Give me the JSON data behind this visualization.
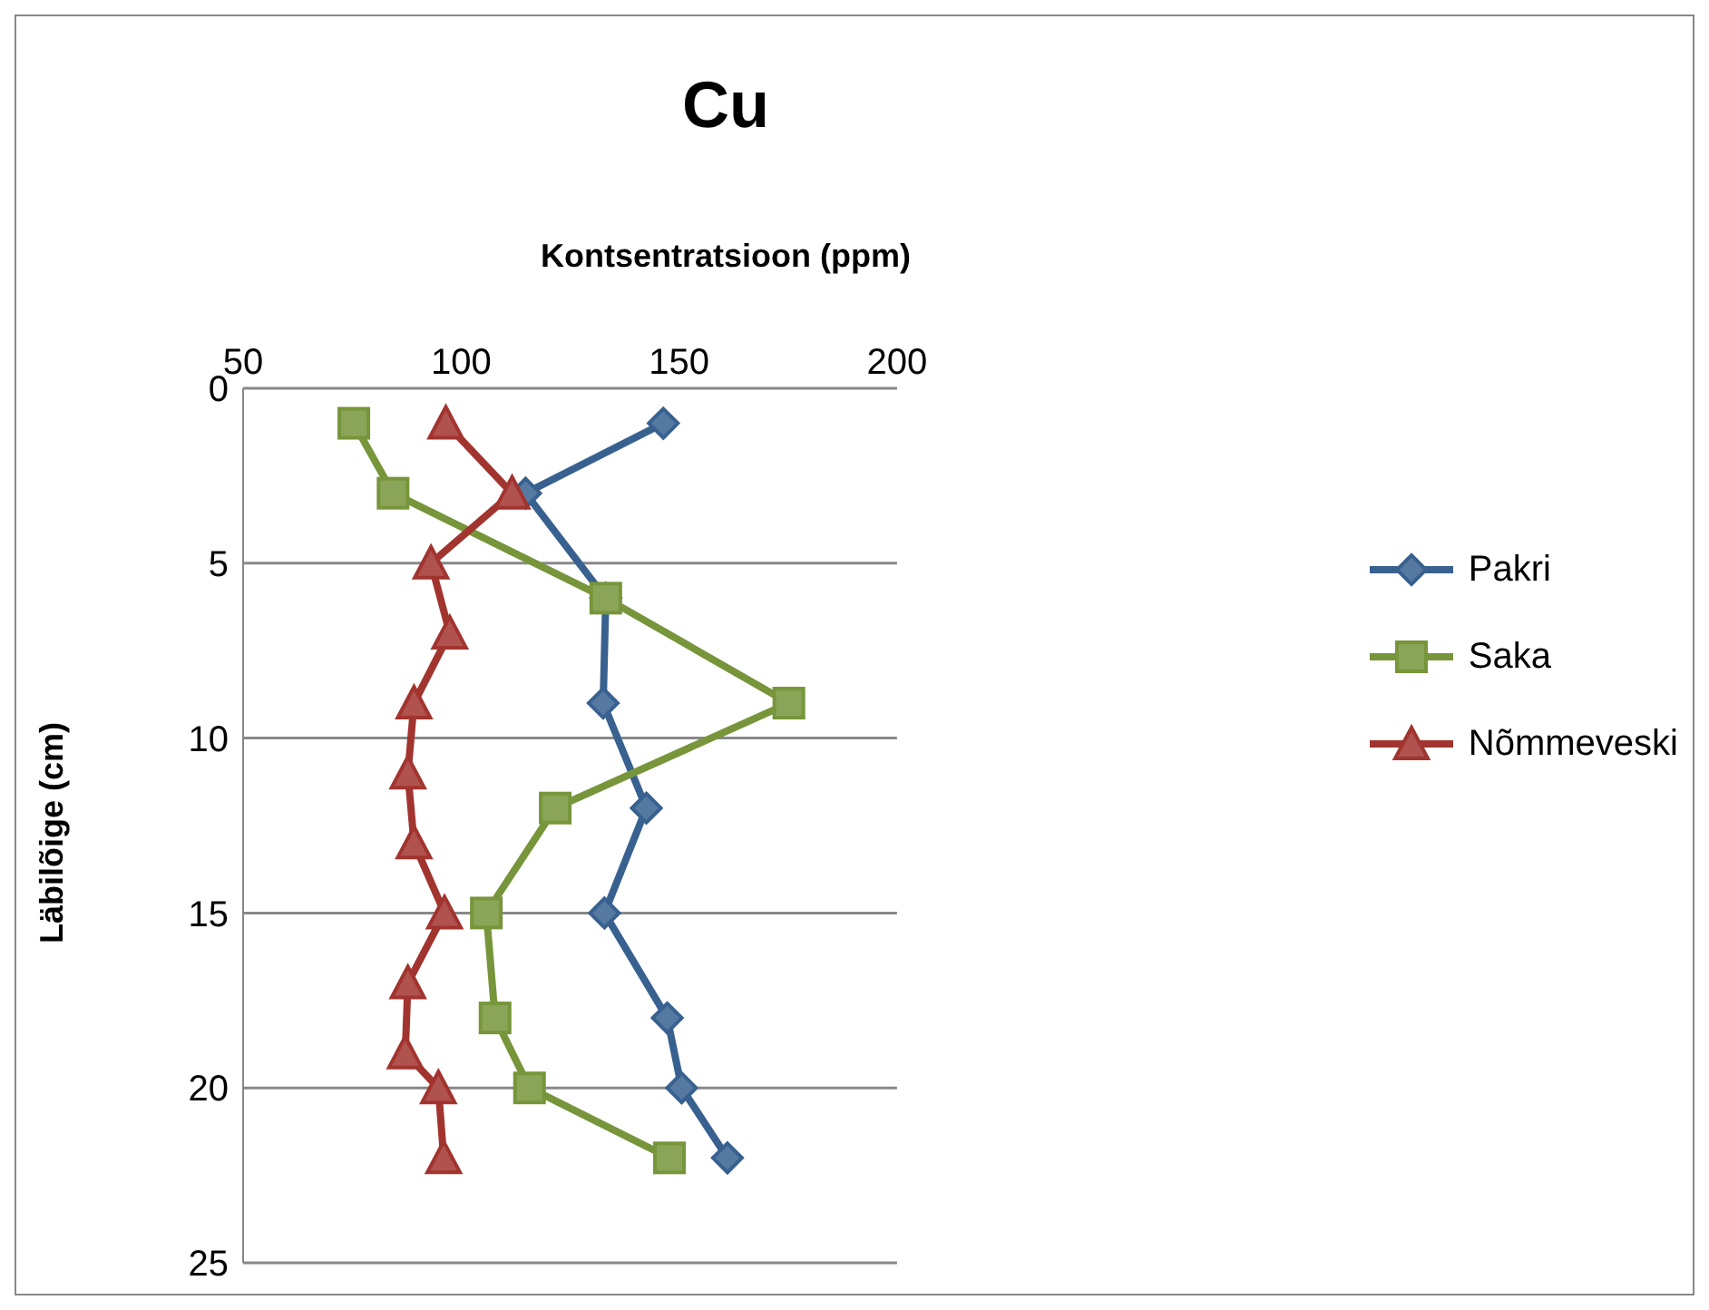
{
  "chart_data": {
    "type": "line",
    "title": "Cu",
    "xlabel": "Kontsentratsioon (ppm)",
    "ylabel": "Läbilõige (cm)",
    "xlim": [
      50,
      200
    ],
    "xticks": [
      50,
      100,
      150,
      200
    ],
    "ylim": [
      25,
      0
    ],
    "yticks": [
      0,
      5,
      10,
      15,
      20,
      25
    ],
    "grid": "y",
    "legend": "right",
    "series": [
      {
        "name": "Pakri",
        "color": "#386190",
        "marker": "diamond",
        "x": [
          146.4,
          114.8,
          133.2,
          132.6,
          142.5,
          132.9,
          147.3,
          150.6,
          161.1
        ],
        "values": [
          1,
          3,
          6,
          9,
          12,
          15,
          18,
          20,
          22
        ]
      },
      {
        "name": "Saka",
        "color": "#77953a",
        "marker": "square",
        "x": [
          75.4,
          84.4,
          133.2,
          175.2,
          121.6,
          105.8,
          107.8,
          115.7,
          147.8
        ],
        "values": [
          1,
          3,
          6,
          9,
          12,
          15,
          18,
          20,
          22
        ]
      },
      {
        "name": "Nõmmeveski",
        "color": "#a2342f",
        "marker": "triangle",
        "x": [
          96.5,
          111.7,
          93.1,
          97.4,
          89.2,
          87.8,
          89.2,
          96.2,
          87.8,
          87.2,
          94.8,
          96.0
        ],
        "values": [
          1,
          3,
          5,
          7,
          9,
          11,
          13,
          15,
          17,
          19,
          20,
          22
        ]
      }
    ]
  }
}
